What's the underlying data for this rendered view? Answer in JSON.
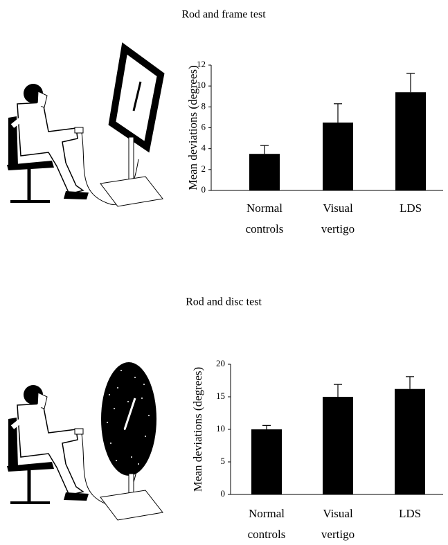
{
  "chart_data": [
    {
      "type": "bar",
      "title": "Rod and frame test",
      "y_label": "Mean deviations (degrees)",
      "categories": [
        "Normal controls",
        "Visual vertigo",
        "LDS"
      ],
      "series": [
        {
          "values": [
            3.5,
            6.5,
            9.4
          ],
          "errors": [
            0.8,
            1.8,
            1.8
          ],
          "color": "#000000"
        }
      ],
      "ylim": [
        0,
        12
      ],
      "yticks": [
        0,
        2,
        4,
        6,
        8,
        10,
        12
      ]
    },
    {
      "type": "bar",
      "title": "Rod and disc test",
      "y_label": "Mean deviations (degrees)",
      "categories": [
        "Normal controls",
        "Visual vertigo",
        "LDS"
      ],
      "series": [
        {
          "values": [
            10,
            15,
            16.2
          ],
          "errors": [
            0.6,
            1.9,
            1.9
          ],
          "color": "#000000"
        }
      ],
      "ylim": [
        0,
        20
      ],
      "yticks": [
        0,
        5,
        10,
        15,
        20
      ]
    }
  ]
}
